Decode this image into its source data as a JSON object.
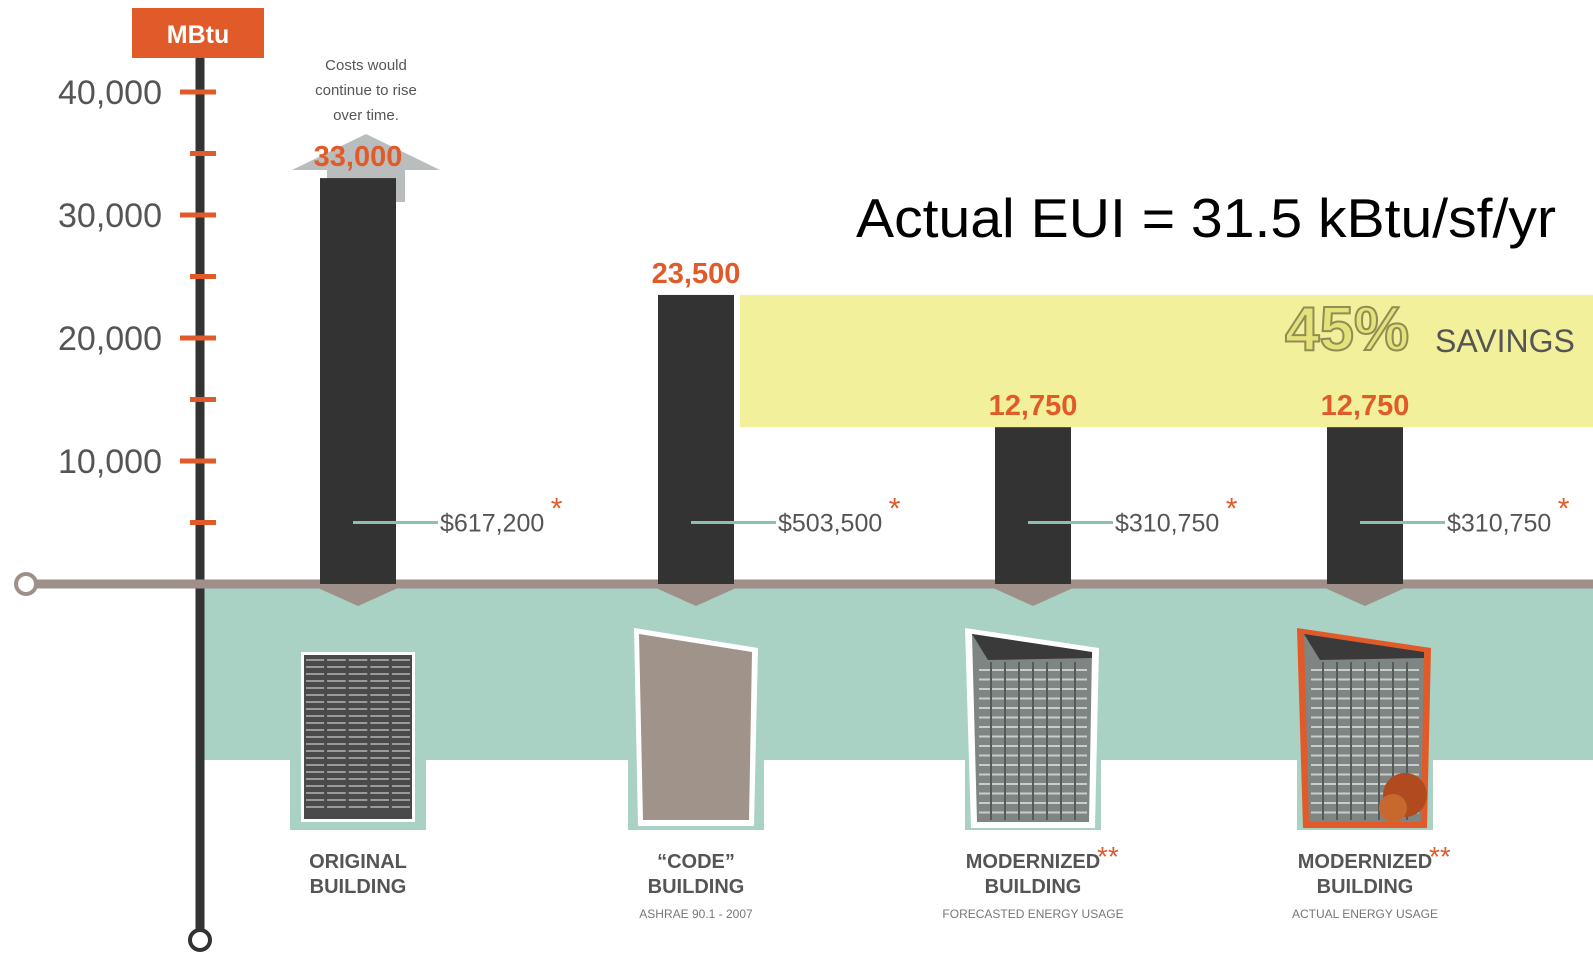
{
  "chart_data": {
    "type": "bar",
    "unit_badge": "MBtu",
    "y_ticks": [
      "40,000",
      "30,000",
      "20,000",
      "10,000"
    ],
    "y_tick_values": [
      40000,
      30000,
      20000,
      10000
    ],
    "ylim": [
      0,
      45000
    ],
    "headline": "Actual EUI = 31.5 kBtu/sf/yr",
    "savings": {
      "percent": "45%",
      "label": "SAVINGS",
      "from_value": 23500,
      "to_value": 12750
    },
    "arrow_note": "Costs would continue to rise over time.",
    "bars": [
      {
        "value": 33000,
        "value_label": "33,000",
        "cost": "$617,200",
        "cost_mark": "*",
        "name_line1": "ORIGINAL",
        "name_line2": "BUILDING",
        "name_mark": "",
        "sublabel": ""
      },
      {
        "value": 23500,
        "value_label": "23,500",
        "cost": "$503,500",
        "cost_mark": "*",
        "name_line1": "“CODE”",
        "name_line2": "BUILDING",
        "name_mark": "",
        "sublabel": "ASHRAE 90.1 - 2007"
      },
      {
        "value": 12750,
        "value_label": "12,750",
        "cost": "$310,750",
        "cost_mark": "*",
        "name_line1": "MODERNIZED",
        "name_line2": "BUILDING",
        "name_mark": "**",
        "sublabel": "FORECASTED ENERGY USAGE"
      },
      {
        "value": 12750,
        "value_label": "12,750",
        "cost": "$310,750",
        "cost_mark": "*",
        "name_line1": "MODERNIZED",
        "name_line2": "BUILDING",
        "name_mark": "**",
        "sublabel": "ACTUAL ENERGY USAGE"
      }
    ],
    "colors": {
      "accent": "#E15B2A",
      "bar": "#333333",
      "axis": "#333333",
      "baseline": "#9E9088",
      "teal_band": "#A9D1C4",
      "savings_band": "#F2F09A",
      "savings_text_fill": "#E6E27A",
      "savings_text_stroke": "#8F8C55",
      "arrow": "#B9BDBE",
      "leader": "#8CC0B4",
      "label_text": "#555555"
    }
  }
}
